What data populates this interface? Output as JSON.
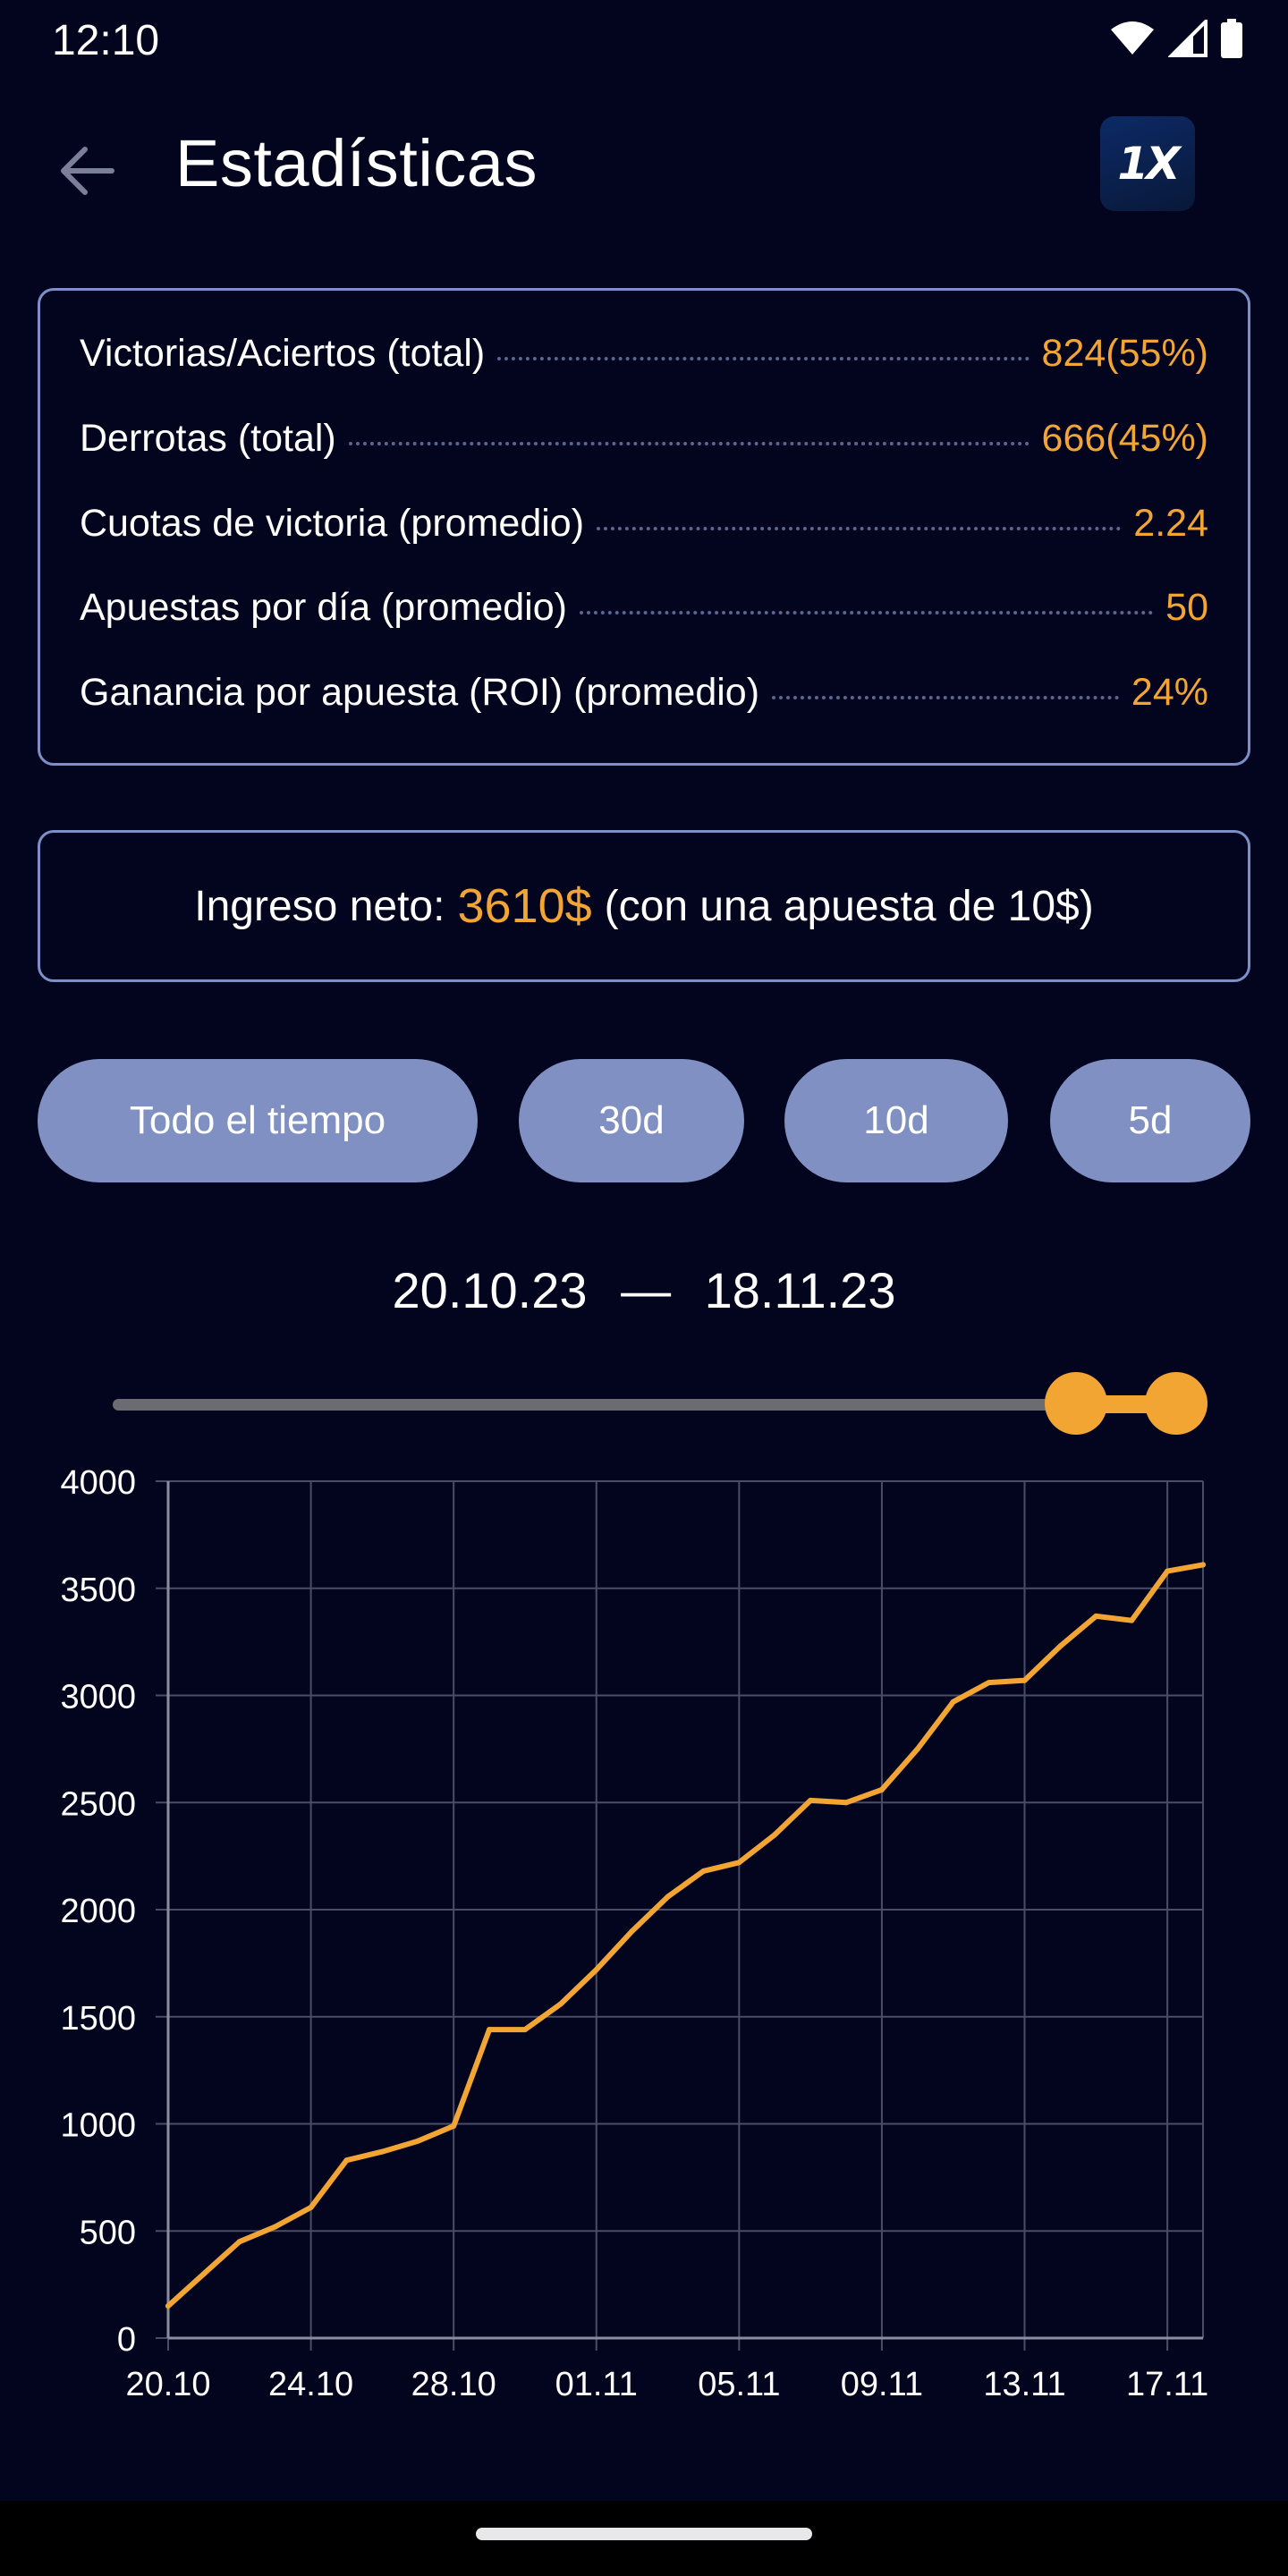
{
  "status_bar": {
    "time": "12:10"
  },
  "header": {
    "title": "Estadísticas",
    "logo_text": "1X"
  },
  "stats": [
    {
      "label": "Victorias/Aciertos (total)",
      "value": "824(55%)"
    },
    {
      "label": "Derrotas (total)",
      "value": "666(45%)"
    },
    {
      "label": "Cuotas de victoria (promedio)",
      "value": "2.24"
    },
    {
      "label": "Apuestas por día (promedio)",
      "value": "50"
    },
    {
      "label": "Ganancia por apuesta (ROI) (promedio)",
      "value": "24%"
    }
  ],
  "income": {
    "label": "Ingreso neto:",
    "amount": "3610$",
    "note": "(con una apuesta de 10$)"
  },
  "filters": [
    {
      "label": "Todo el tiempo"
    },
    {
      "label": "30d"
    },
    {
      "label": "10d"
    },
    {
      "label": "5d"
    }
  ],
  "range": {
    "start": "20.10.23",
    "separator": "—",
    "end": "18.11.23"
  },
  "colors": {
    "accent": "#f2a533",
    "background": "#03051f",
    "chip": "#8090c2",
    "border": "#7c8fc8"
  },
  "chart_data": {
    "type": "line",
    "title": "",
    "xlabel": "",
    "ylabel": "",
    "x": [
      "20.10",
      "21.10",
      "22.10",
      "23.10",
      "24.10",
      "25.10",
      "26.10",
      "27.10",
      "28.10",
      "29.10",
      "30.10",
      "31.10",
      "01.11",
      "02.11",
      "03.11",
      "04.11",
      "05.11",
      "06.11",
      "07.11",
      "08.11",
      "09.11",
      "10.11",
      "11.11",
      "12.11",
      "13.11",
      "14.11",
      "15.11",
      "16.11",
      "17.11",
      "18.11"
    ],
    "x_ticks": [
      "20.10",
      "24.10",
      "28.10",
      "01.11",
      "05.11",
      "09.11",
      "13.11",
      "17.11"
    ],
    "series": [
      {
        "values": [
          150,
          300,
          450,
          520,
          610,
          830,
          870,
          920,
          990,
          1440,
          1440,
          1560,
          1720,
          1900,
          2060,
          2180,
          2220,
          2350,
          2510,
          2500,
          2560,
          2750,
          2970,
          3060,
          3070,
          3230,
          3370,
          3350,
          3580,
          3610
        ]
      }
    ],
    "ylim": [
      0,
      4000
    ],
    "y_ticks": [
      0,
      500,
      1000,
      1500,
      2000,
      2500,
      3000,
      3500,
      4000
    ],
    "grid": true
  }
}
